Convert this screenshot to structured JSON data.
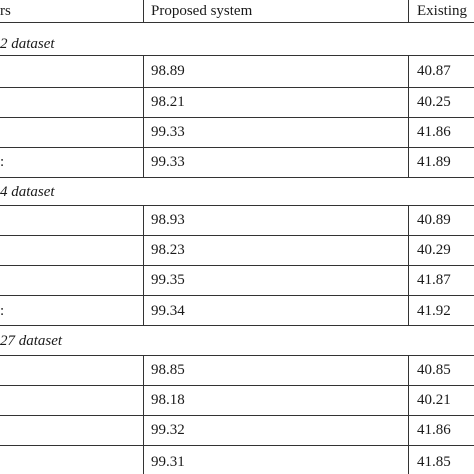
{
  "header": {
    "col1": "rs",
    "col2": "Proposed system",
    "col3": "Existing"
  },
  "sections": [
    {
      "title": "2 dataset",
      "rows": [
        {
          "stub": "",
          "proposed": "98.89",
          "existing": "40.87"
        },
        {
          "stub": "",
          "proposed": "98.21",
          "existing": "40.25"
        },
        {
          "stub": "",
          "proposed": "99.33",
          "existing": "41.86"
        },
        {
          "stub": ":",
          "proposed": "99.33",
          "existing": "41.89"
        }
      ]
    },
    {
      "title": "4 dataset",
      "rows": [
        {
          "stub": "",
          "proposed": "98.93",
          "existing": "40.89"
        },
        {
          "stub": "",
          "proposed": "98.23",
          "existing": "40.29"
        },
        {
          "stub": "",
          "proposed": "99.35",
          "existing": "41.87"
        },
        {
          "stub": ":",
          "proposed": "99.34",
          "existing": "41.92"
        }
      ]
    },
    {
      "title": "27 dataset",
      "rows": [
        {
          "stub": "",
          "proposed": "98.85",
          "existing": "40.85"
        },
        {
          "stub": "",
          "proposed": "98.18",
          "existing": "40.21"
        },
        {
          "stub": "",
          "proposed": "99.32",
          "existing": "41.86"
        },
        {
          "stub": "",
          "proposed": "99.31",
          "existing": "41.85"
        }
      ]
    }
  ]
}
